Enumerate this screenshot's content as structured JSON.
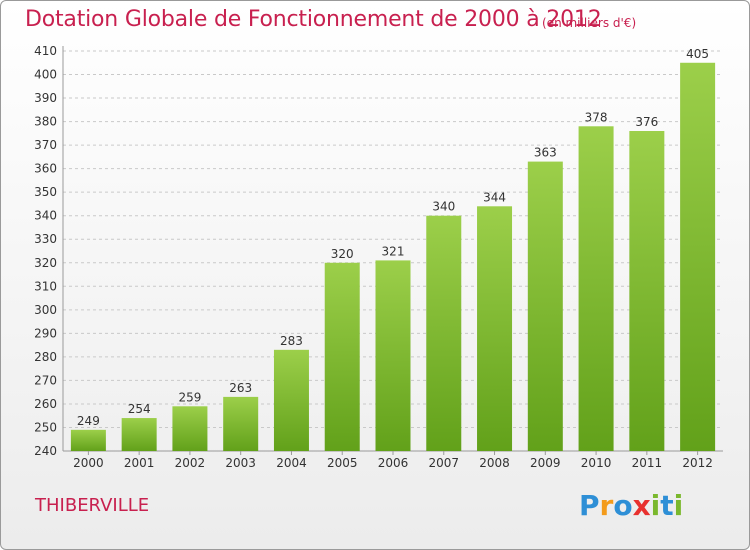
{
  "title": "Dotation Globale de Fonctionnement de 2000 à 2012",
  "subtitle": "(en milliers d'€)",
  "commune": "THIBERVILLE",
  "logo": {
    "letters": [
      "P",
      "r",
      "o",
      "x",
      "i",
      "t",
      "i"
    ],
    "colors": [
      "#2e8fd6",
      "#f39b1b",
      "#2e8fd6",
      "#e8312f",
      "#7ab82d",
      "#2e8fd6",
      "#7ab82d"
    ]
  },
  "colors": {
    "bar_light": "#9ccf4a",
    "bar_dark": "#62a11a",
    "accent": "#c8204f"
  },
  "chart_data": {
    "type": "bar",
    "categories": [
      "2000",
      "2001",
      "2002",
      "2003",
      "2004",
      "2005",
      "2006",
      "2007",
      "2008",
      "2009",
      "2010",
      "2011",
      "2012"
    ],
    "values": [
      249,
      254,
      259,
      263,
      283,
      320,
      321,
      340,
      344,
      363,
      378,
      376,
      405
    ],
    "ylim": [
      240,
      410
    ],
    "yticks": [
      240,
      250,
      260,
      270,
      280,
      290,
      300,
      310,
      320,
      330,
      340,
      350,
      360,
      370,
      380,
      390,
      400,
      410
    ],
    "grid": true
  }
}
